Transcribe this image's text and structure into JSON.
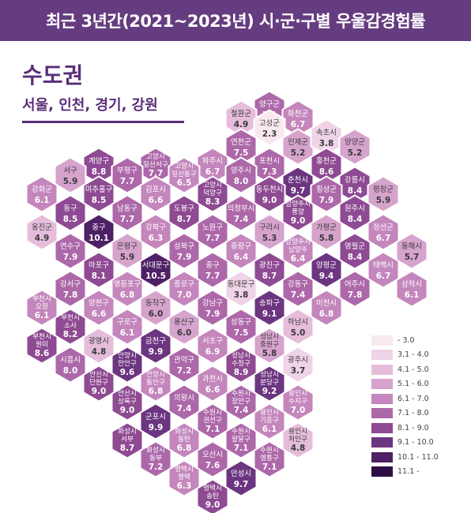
{
  "header": {
    "title": "최근 3년간(2021~2023년) 시·군·구별 우울감경험률"
  },
  "region": {
    "title": "수도권",
    "subtitle": "서울, 인천, 경기, 강원"
  },
  "colors": {
    "bins": [
      "#f8e9f0",
      "#efd3e6",
      "#e5bddb",
      "#d6a3cd",
      "#c486bc",
      "#ad68a9",
      "#8e4a92",
      "#6c3580",
      "#4e2065",
      "#2e0f45"
    ]
  },
  "legend": [
    {
      "label": " - 3.0"
    },
    {
      "label": "3.1 - 4.0"
    },
    {
      "label": "4.1 - 5.0"
    },
    {
      "label": "5.1 - 6.0"
    },
    {
      "label": "6.1 - 7.0"
    },
    {
      "label": "7.1 - 8.0"
    },
    {
      "label": "8.1 - 9.0"
    },
    {
      "label": "9.1 - 10.0"
    },
    {
      "label": "10.1 - 11.0"
    },
    {
      "label": "11.1 - "
    }
  ],
  "regions": [
    {
      "name": "양구군",
      "value": 7.1
    },
    {
      "name": "철원군",
      "value": 4.9
    },
    {
      "name": "화천군",
      "value": 6.7
    },
    {
      "name": "고성군",
      "value": 2.3
    },
    {
      "name": "연천군",
      "value": 7.5
    },
    {
      "name": "인제군",
      "value": 5.2
    },
    {
      "name": "속초시",
      "value": 3.8
    },
    {
      "name": "양양군",
      "value": 5.2
    },
    {
      "name": "계양구",
      "value": 8.8
    },
    {
      "name": "고양시 일산서구",
      "value": 7.7
    },
    {
      "name": "파주시",
      "value": 6.7
    },
    {
      "name": "포천시",
      "value": 7.3
    },
    {
      "name": "홍천군",
      "value": 8.6
    },
    {
      "name": "서구",
      "value": 5.9
    },
    {
      "name": "부평구",
      "value": 7.7
    },
    {
      "name": "고양시 일산동구",
      "value": 6.5
    },
    {
      "name": "양주시",
      "value": 8.0
    },
    {
      "name": "춘천시",
      "value": 9.7
    },
    {
      "name": "강릉시",
      "value": 8.4
    },
    {
      "name": "강화군",
      "value": 6.1
    },
    {
      "name": "미추홀구",
      "value": 8.5
    },
    {
      "name": "김포시",
      "value": 6.6
    },
    {
      "name": "고양시 덕양구",
      "value": 8.3
    },
    {
      "name": "동두천시",
      "value": 9.0
    },
    {
      "name": "횡성군",
      "value": 7.9
    },
    {
      "name": "평창군",
      "value": 5.9
    },
    {
      "name": "동구",
      "value": 8.5
    },
    {
      "name": "남동구",
      "value": 7.7
    },
    {
      "name": "도봉구",
      "value": 8.7
    },
    {
      "name": "의정부시",
      "value": 7.4
    },
    {
      "name": "남양주시 풍양",
      "value": 9.0
    },
    {
      "name": "원주시",
      "value": 8.4
    },
    {
      "name": "옹진군",
      "value": 4.9
    },
    {
      "name": "중구",
      "value": 10.1
    },
    {
      "name": "강북구",
      "value": 6.3
    },
    {
      "name": "노원구",
      "value": 7.7
    },
    {
      "name": "구리시",
      "value": 5.3
    },
    {
      "name": "가평군",
      "value": 5.8
    },
    {
      "name": "정선군",
      "value": 6.7
    },
    {
      "name": "연수구",
      "value": 7.9
    },
    {
      "name": "은평구",
      "value": 5.9
    },
    {
      "name": "성북구",
      "value": 7.9
    },
    {
      "name": "중랑구",
      "value": 6.4
    },
    {
      "name": "남양주시 남양주",
      "value": 6.4
    },
    {
      "name": "영월군",
      "value": 8.4
    },
    {
      "name": "동해시",
      "value": 5.7
    },
    {
      "name": "마포구",
      "value": 8.1
    },
    {
      "name": "서대문구",
      "value": 10.5
    },
    {
      "name": "중구",
      "value": 7.7
    },
    {
      "name": "광진구",
      "value": 8.7
    },
    {
      "name": "양평군",
      "value": 9.4
    },
    {
      "name": "태백시",
      "value": 6.7
    },
    {
      "name": "강서구",
      "value": 7.8
    },
    {
      "name": "영등포구",
      "value": 6.8
    },
    {
      "name": "종로구",
      "value": 7.0
    },
    {
      "name": "동대문구",
      "value": 3.8
    },
    {
      "name": "강동구",
      "value": 7.4
    },
    {
      "name": "여주시",
      "value": 7.8
    },
    {
      "name": "삼척시",
      "value": 6.1
    },
    {
      "name": "부천시 오정",
      "value": 6.1
    },
    {
      "name": "양천구",
      "value": 6.6
    },
    {
      "name": "동작구",
      "value": 6.0
    },
    {
      "name": "강남구",
      "value": 7.9
    },
    {
      "name": "송파구",
      "value": 9.1
    },
    {
      "name": "이천시",
      "value": 6.8
    },
    {
      "name": "부천시 소사",
      "value": 8.2
    },
    {
      "name": "구로구",
      "value": 6.1
    },
    {
      "name": "용산구",
      "value": 6.0
    },
    {
      "name": "성동구",
      "value": 7.5
    },
    {
      "name": "하남시",
      "value": 5.0
    },
    {
      "name": "부천시 원미",
      "value": 8.6
    },
    {
      "name": "광명시",
      "value": 4.8
    },
    {
      "name": "금천구",
      "value": 9.9
    },
    {
      "name": "서초구",
      "value": 6.9
    },
    {
      "name": "성남시 중원구",
      "value": 5.8
    },
    {
      "name": "시흥시",
      "value": 8.0
    },
    {
      "name": "안양시 만안구",
      "value": 9.6
    },
    {
      "name": "관악구",
      "value": 7.2
    },
    {
      "name": "성남시 수정구",
      "value": 8.9
    },
    {
      "name": "광주시",
      "value": 3.7
    },
    {
      "name": "안산시 단원구",
      "value": 9.0
    },
    {
      "name": "안양시 동안구",
      "value": 6.8
    },
    {
      "name": "과천시",
      "value": 6.6
    },
    {
      "name": "성남시 분당구",
      "value": 9.2
    },
    {
      "name": "안산시 상록구",
      "value": 9.0
    },
    {
      "name": "의왕시",
      "value": 7.4
    },
    {
      "name": "수원시 장안구",
      "value": 7.4
    },
    {
      "name": "용인시 수지구",
      "value": 7.0
    },
    {
      "name": "군포시",
      "value": 9.9
    },
    {
      "name": "수원시 권선구",
      "value": 7.1
    },
    {
      "name": "용인시 기흥구",
      "value": 6.1
    },
    {
      "name": "화성시 서부",
      "value": 8.7
    },
    {
      "name": "화성시 동탄",
      "value": 6.8
    },
    {
      "name": "수원시 팔달구",
      "value": 7.1
    },
    {
      "name": "용인시 처인구",
      "value": 4.8
    },
    {
      "name": "화성시 동부",
      "value": 7.2
    },
    {
      "name": "오산시",
      "value": 7.6
    },
    {
      "name": "수원시 영통구",
      "value": 7.1
    },
    {
      "name": "평택시 평택",
      "value": 6.3
    },
    {
      "name": "안성시",
      "value": 9.7
    },
    {
      "name": "평택시 송탄",
      "value": 9.0
    }
  ]
}
